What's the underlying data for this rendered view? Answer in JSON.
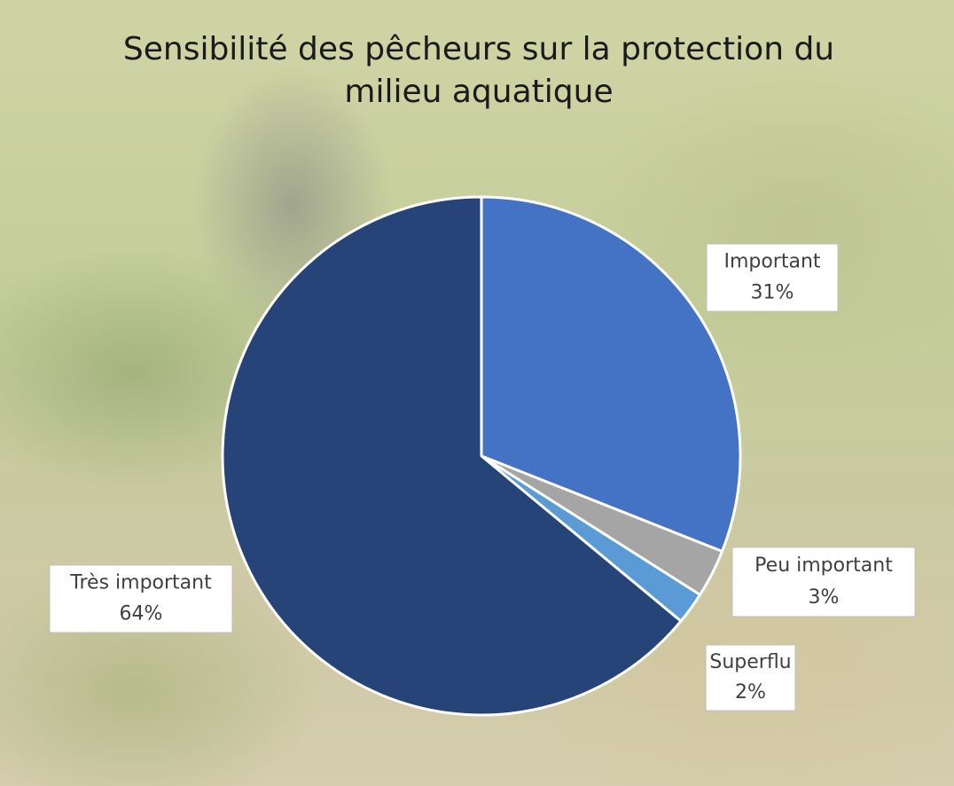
{
  "chart_data": {
    "type": "pie",
    "title": "Sensibilité des pêcheurs sur la protection du milieu aquatique",
    "categories": [
      "Important",
      "Peu important",
      "Superflu",
      "Très important"
    ],
    "values": [
      31,
      3,
      2,
      64
    ],
    "value_labels": [
      "31%",
      "3%",
      "2%",
      "64%"
    ],
    "colors": [
      "#4472c4",
      "#a5a5a5",
      "#5b9bd5",
      "#264478"
    ]
  }
}
